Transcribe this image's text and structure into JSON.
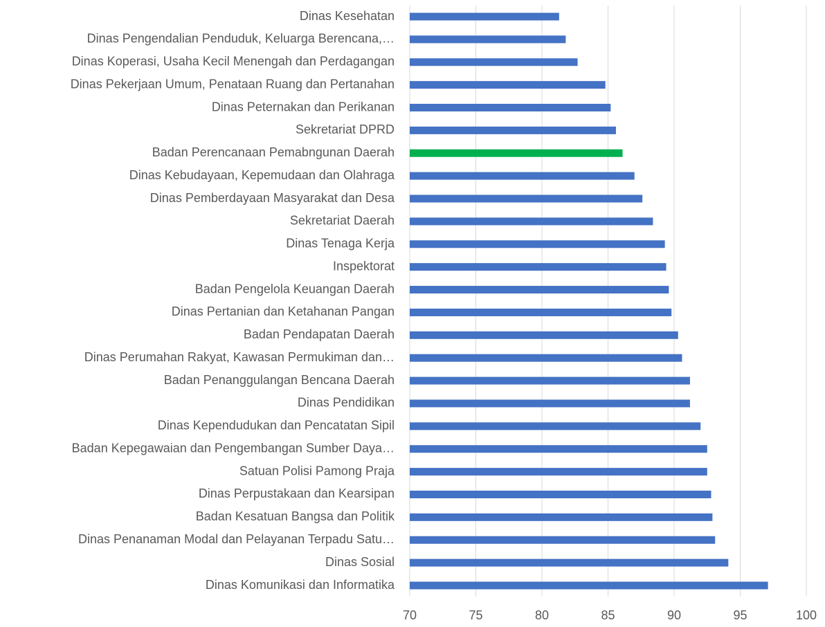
{
  "chart_data": {
    "type": "barh",
    "categories": [
      "Dinas Kesehatan",
      "Dinas Pengendalian Penduduk, Keluarga Berencana,…",
      "Dinas Koperasi, Usaha Kecil Menengah dan Perdagangan",
      "Dinas Pekerjaan Umum, Penataan Ruang dan Pertanahan",
      "Dinas Peternakan dan Perikanan",
      "Sekretariat DPRD",
      "Badan Perencanaan Pemabngunan Daerah",
      "Dinas Kebudayaan, Kepemudaan dan Olahraga",
      "Dinas Pemberdayaan Masyarakat dan Desa",
      "Sekretariat Daerah",
      "Dinas Tenaga Kerja",
      "Inspektorat",
      "Badan Pengelola Keuangan Daerah",
      "Dinas Pertanian dan Ketahanan Pangan",
      "Badan Pendapatan Daerah",
      "Dinas Perumahan Rakyat, Kawasan Permukiman dan…",
      "Badan Penanggulangan Bencana Daerah",
      "Dinas Pendidikan",
      "Dinas Kependudukan dan Pencatatan Sipil",
      "Badan Kepegawaian dan Pengembangan Sumber Daya…",
      "Satuan Polisi Pamong Praja",
      "Dinas Perpustakaan dan Kearsipan",
      "Badan Kesatuan Bangsa dan Politik",
      "Dinas Penanaman Modal dan Pelayanan Terpadu Satu…",
      "Dinas Sosial",
      "Dinas Komunikasi dan Informatika"
    ],
    "values": [
      81.3,
      81.8,
      82.7,
      84.8,
      85.2,
      85.6,
      86.1,
      87.0,
      87.6,
      88.4,
      89.3,
      89.4,
      89.6,
      89.8,
      90.3,
      90.6,
      91.2,
      91.2,
      92.0,
      92.5,
      92.5,
      92.8,
      92.9,
      93.1,
      94.1,
      97.1
    ],
    "colors": [
      "#4472c4",
      "#4472c4",
      "#4472c4",
      "#4472c4",
      "#4472c4",
      "#4472c4",
      "#00b050",
      "#4472c4",
      "#4472c4",
      "#4472c4",
      "#4472c4",
      "#4472c4",
      "#4472c4",
      "#4472c4",
      "#4472c4",
      "#4472c4",
      "#4472c4",
      "#4472c4",
      "#4472c4",
      "#4472c4",
      "#4472c4",
      "#4472c4",
      "#4472c4",
      "#4472c4",
      "#4472c4",
      "#4472c4"
    ],
    "xlim": [
      70,
      100
    ],
    "xticks": [
      70,
      75,
      80,
      85,
      90,
      95,
      100
    ],
    "grid": true
  }
}
